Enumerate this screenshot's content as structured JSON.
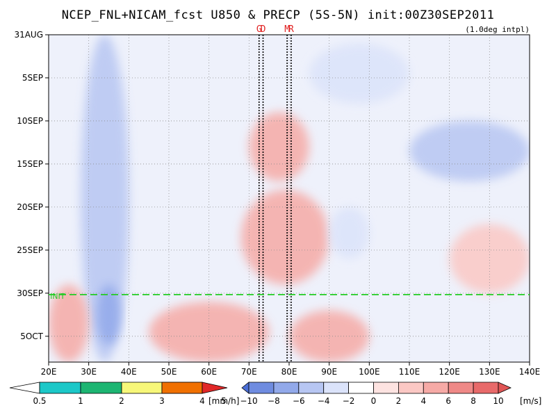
{
  "title": "NCEP_FNL+NICAM_fcst U850 & PRECP (5S-5N) init:00Z30SEP2011",
  "note": "(1.0deg intpl)",
  "chart_data": {
    "type": "heatmap",
    "title": "NCEP_FNL+NICAM_fcst U850 & PRECP (5S-5N) init:00Z30SEP2011",
    "x_axis": {
      "ticks": [
        "20E",
        "30E",
        "40E",
        "50E",
        "60E",
        "70E",
        "80E",
        "90E",
        "100E",
        "110E",
        "120E",
        "130E",
        "140E"
      ],
      "range": [
        20,
        140
      ]
    },
    "y_axis": {
      "ticks": [
        "31AUG",
        "5SEP",
        "10SEP",
        "15SEP",
        "20SEP",
        "25SEP",
        "30SEP",
        "5OCT"
      ],
      "start": "31AUG",
      "end": "8OCT",
      "reversed": true
    },
    "init_line": {
      "label": "30SEP",
      "tag": "INIT",
      "color": "#22cc22"
    },
    "markers": [
      {
        "label": "G",
        "lon": 72.5
      },
      {
        "label": "D",
        "lon": 73.5
      },
      {
        "label": "M",
        "lon": 79.5
      },
      {
        "label": "R",
        "lon": 80.5
      }
    ],
    "grid": true,
    "u850_colorbar": {
      "labels": [
        "−10",
        "−8",
        "−6",
        "−4",
        "−2",
        "0",
        "2",
        "4",
        "6",
        "8",
        "10"
      ],
      "unit": "[m/s]",
      "colors": [
        "#4a6ed6",
        "#6f8ce0",
        "#92a9ea",
        "#b7c6f2",
        "#dbe3fa",
        "#ffffff",
        "#fde3e1",
        "#fbc8c4",
        "#f6aaa6",
        "#ef8987",
        "#e86a6a",
        "#e05555"
      ]
    },
    "precip_colorbar": {
      "labels": [
        "0.5",
        "1",
        "2",
        "3",
        "4",
        "5"
      ],
      "unit": "[mm/h]",
      "colors": [
        "#ffffff",
        "#1cc8c8",
        "#1db572",
        "#f7f779",
        "#f2c800",
        "#f07000",
        "#e02828"
      ]
    },
    "u850_regions": [
      {
        "lon": [
          28,
          40
        ],
        "date": [
          "31AUG",
          "8OCT"
        ],
        "value": -5
      },
      {
        "lon": [
          32,
          38
        ],
        "date": [
          "29SEP",
          "6OCT"
        ],
        "value": -8
      },
      {
        "lon": [
          20,
          30
        ],
        "date": [
          "29SEP",
          "8OCT"
        ],
        "value": 4
      },
      {
        "lon": [
          70,
          85
        ],
        "date": [
          "9SEP",
          "17SEP"
        ],
        "value": 5
      },
      {
        "lon": [
          68,
          90
        ],
        "date": [
          "18SEP",
          "29SEP"
        ],
        "value": 4
      },
      {
        "lon": [
          45,
          75
        ],
        "date": [
          "1OCT",
          "8OCT"
        ],
        "value": 5
      },
      {
        "lon": [
          80,
          100
        ],
        "date": [
          "2OCT",
          "8OCT"
        ],
        "value": 5
      },
      {
        "lon": [
          110,
          140
        ],
        "date": [
          "10SEP",
          "17SEP"
        ],
        "value": -5
      },
      {
        "lon": [
          85,
          110
        ],
        "date": [
          "1SEP",
          "8SEP"
        ],
        "value": -3
      },
      {
        "lon": [
          90,
          100
        ],
        "date": [
          "20SEP",
          "26SEP"
        ],
        "value": -4
      },
      {
        "lon": [
          120,
          140
        ],
        "date": [
          "22SEP",
          "30SEP"
        ],
        "value": 3
      }
    ]
  }
}
